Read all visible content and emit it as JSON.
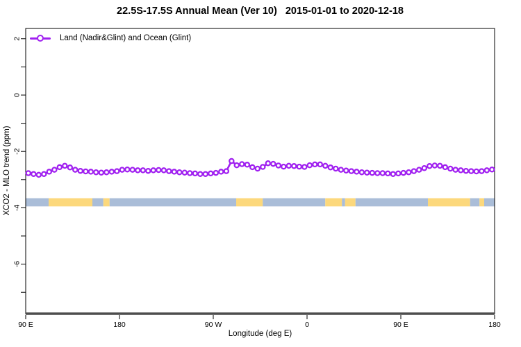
{
  "title": "22.5S-17.5S Annual Mean (Ver 10)   2015-01-01 to 2020-12-18",
  "legend": {
    "label": "Land (Nadir&Glint) and Ocean (Glint)"
  },
  "chart_data": {
    "type": "line",
    "title": "22.5S-17.5S Annual Mean (Ver 10)   2015-01-01 to 2020-12-18",
    "xlabel": "Longitude (deg E)",
    "ylabel": "XCO2 - MLO trend (ppm)",
    "legend_position": "top-left-inside",
    "grid": "off",
    "xlim_deg": [
      90,
      540
    ],
    "ylim": [
      -7.8,
      2.4
    ],
    "xticks": [
      {
        "deg": 90,
        "label": "90 E"
      },
      {
        "deg": 180,
        "label": "180"
      },
      {
        "deg": 270,
        "label": "90 W"
      },
      {
        "deg": 360,
        "label": "0"
      },
      {
        "deg": 450,
        "label": "90 E"
      },
      {
        "deg": 540,
        "label": "180"
      }
    ],
    "yticks": [
      {
        "v": 2,
        "label": "2"
      },
      {
        "v": 0,
        "label": "0"
      },
      {
        "v": -2,
        "label": "-2"
      },
      {
        "v": -4,
        "label": "-4"
      },
      {
        "v": -6,
        "label": "-6"
      }
    ],
    "yticks_minor": [
      1,
      -1,
      -3,
      -5,
      -7
    ],
    "series": [
      {
        "name": "Land (Nadir&Glint) and Ocean (Glint)",
        "color": "#A020F0",
        "marker": "open-circle",
        "x_start_deg": 92.5,
        "x_step_deg": 5,
        "values": [
          -2.77,
          -2.8,
          -2.83,
          -2.8,
          -2.72,
          -2.65,
          -2.56,
          -2.51,
          -2.57,
          -2.65,
          -2.69,
          -2.71,
          -2.72,
          -2.74,
          -2.75,
          -2.74,
          -2.72,
          -2.7,
          -2.65,
          -2.64,
          -2.65,
          -2.67,
          -2.67,
          -2.69,
          -2.67,
          -2.66,
          -2.67,
          -2.7,
          -2.72,
          -2.74,
          -2.75,
          -2.77,
          -2.78,
          -2.8,
          -2.8,
          -2.78,
          -2.76,
          -2.72,
          -2.7,
          -2.34,
          -2.49,
          -2.45,
          -2.47,
          -2.56,
          -2.61,
          -2.55,
          -2.42,
          -2.44,
          -2.5,
          -2.54,
          -2.51,
          -2.52,
          -2.54,
          -2.55,
          -2.49,
          -2.46,
          -2.46,
          -2.51,
          -2.57,
          -2.61,
          -2.65,
          -2.68,
          -2.7,
          -2.72,
          -2.74,
          -2.75,
          -2.76,
          -2.77,
          -2.77,
          -2.78,
          -2.8,
          -2.78,
          -2.76,
          -2.74,
          -2.7,
          -2.65,
          -2.59,
          -2.52,
          -2.5,
          -2.51,
          -2.56,
          -2.61,
          -2.65,
          -2.67,
          -2.69,
          -2.7,
          -2.71,
          -2.7,
          -2.67,
          -2.64
        ]
      }
    ],
    "surface_band": {
      "description": "land/ocean surface-type strip vs longitude",
      "y_range": [
        -3.95,
        -3.66
      ],
      "colors": {
        "ocean": "#AABDD8",
        "land": "#FCD87C"
      },
      "segments": [
        {
          "type": "ocean",
          "from": 90,
          "to": 112
        },
        {
          "type": "land",
          "from": 112,
          "to": 154
        },
        {
          "type": "ocean",
          "from": 154,
          "to": 164.5
        },
        {
          "type": "land",
          "from": 164.5,
          "to": 170.5
        },
        {
          "type": "ocean",
          "from": 170.5,
          "to": 292
        },
        {
          "type": "land",
          "from": 292,
          "to": 317.5
        },
        {
          "type": "ocean",
          "from": 317.5,
          "to": 377.5
        },
        {
          "type": "land",
          "from": 377.5,
          "to": 393.5
        },
        {
          "type": "ocean",
          "from": 393.5,
          "to": 396.5
        },
        {
          "type": "land",
          "from": 396.5,
          "to": 406.5
        },
        {
          "type": "ocean",
          "from": 406.5,
          "to": 476
        },
        {
          "type": "land",
          "from": 476,
          "to": 516.5
        },
        {
          "type": "ocean",
          "from": 516.5,
          "to": 525.5
        },
        {
          "type": "land",
          "from": 525.5,
          "to": 530
        },
        {
          "type": "ocean",
          "from": 530,
          "to": 540
        }
      ]
    },
    "colors": {
      "series_purple": "#A020F0",
      "band_ocean": "#AABDD8",
      "band_land": "#FCD87C",
      "axis_box": "#000000",
      "axis_bottom_thick": "#4d4d4d"
    }
  }
}
